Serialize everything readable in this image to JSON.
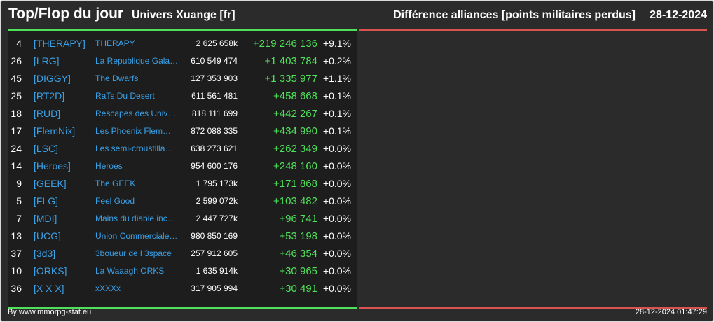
{
  "header": {
    "title": "Top/Flop du jour",
    "universe": "Univers Xuange [fr]",
    "subtitle": "Différence alliances [points militaires perdus]",
    "date": "28-12-2024"
  },
  "colors": {
    "background": "#2b2b2b",
    "panel": "#1d1d1d",
    "top_accent": "#4fe15a",
    "flop_accent": "#d9534f",
    "link": "#3aa0e6",
    "text": "#ffffff"
  },
  "top_rows": [
    {
      "rank": "4",
      "tag": "[THERAPY]",
      "name": "THERAPY",
      "points": "2 625 658k",
      "diff": "+219 246 136",
      "pct": "+9.1%"
    },
    {
      "rank": "26",
      "tag": "[LRG]",
      "name": "La Republique Gala…",
      "points": "610 549 474",
      "diff": "+1 403 784",
      "pct": "+0.2%"
    },
    {
      "rank": "45",
      "tag": "[DIGGY]",
      "name": "The Dwarfs",
      "points": "127 353 903",
      "diff": "+1 335 977",
      "pct": "+1.1%"
    },
    {
      "rank": "25",
      "tag": "[RT2D]",
      "name": "RaTs Du Desert",
      "points": "611 561 481",
      "diff": "+458 668",
      "pct": "+0.1%"
    },
    {
      "rank": "18",
      "tag": "[RUD]",
      "name": "Rescapes des Univ…",
      "points": "818 111 699",
      "diff": "+442 267",
      "pct": "+0.1%"
    },
    {
      "rank": "17",
      "tag": "[FlemNix]",
      "name": "Les Phoenix Flem…",
      "points": "872 088 335",
      "diff": "+434 990",
      "pct": "+0.1%"
    },
    {
      "rank": "24",
      "tag": "[LSC]",
      "name": "Les semi-croustilla…",
      "points": "638 273 621",
      "diff": "+262 349",
      "pct": "+0.0%"
    },
    {
      "rank": "14",
      "tag": "[Heroes]",
      "name": "Heroes",
      "points": "954 600 176",
      "diff": "+248 160",
      "pct": "+0.0%"
    },
    {
      "rank": "9",
      "tag": "[GEEK]",
      "name": "The GEEK",
      "points": "1 795 173k",
      "diff": "+171 868",
      "pct": "+0.0%"
    },
    {
      "rank": "5",
      "tag": "[FLG]",
      "name": "Feel Good",
      "points": "2 599 072k",
      "diff": "+103 482",
      "pct": "+0.0%"
    },
    {
      "rank": "7",
      "tag": "[MDI]",
      "name": "Mains du diable inco…",
      "points": "2 447 727k",
      "diff": "+96 741",
      "pct": "+0.0%"
    },
    {
      "rank": "13",
      "tag": "[UCG]",
      "name": "Union Commerciale…",
      "points": "980 850 169",
      "diff": "+53 198",
      "pct": "+0.0%"
    },
    {
      "rank": "37",
      "tag": "[3d3]",
      "name": "3boueur de l 3space",
      "points": "257 912 605",
      "diff": "+46 354",
      "pct": "+0.0%"
    },
    {
      "rank": "10",
      "tag": "[ORKS]",
      "name": "La Waaagh ORKS",
      "points": "1 635 914k",
      "diff": "+30 965",
      "pct": "+0.0%"
    },
    {
      "rank": "36",
      "tag": "[X X X]",
      "name": "xXXXx",
      "points": "317 905 994",
      "diff": "+30 491",
      "pct": "+0.0%"
    }
  ],
  "footer": {
    "credit": "By www.mmorpg-stat.eu",
    "timestamp": "28-12-2024 01:47:29"
  }
}
